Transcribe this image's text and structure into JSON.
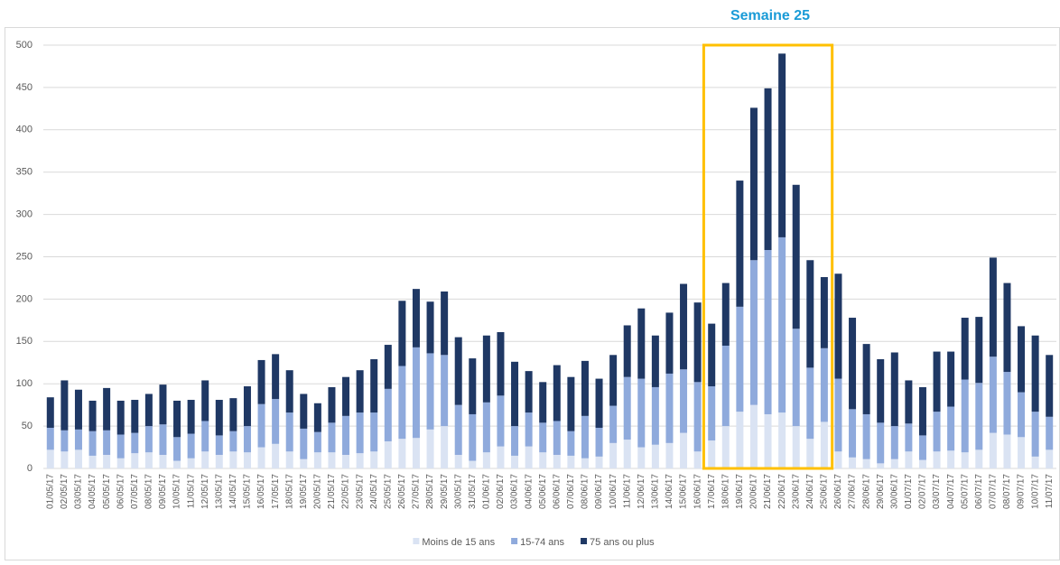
{
  "chart_data": {
    "type": "stacked_bar",
    "annotation": "Semaine 25",
    "categories": [
      "01/05/17",
      "02/05/17",
      "03/05/17",
      "04/05/17",
      "05/05/17",
      "06/05/17",
      "07/05/17",
      "08/05/17",
      "09/05/17",
      "10/05/17",
      "11/05/17",
      "12/05/17",
      "13/05/17",
      "14/05/17",
      "15/05/17",
      "16/05/17",
      "17/05/17",
      "18/05/17",
      "19/05/17",
      "20/05/17",
      "21/05/17",
      "22/05/17",
      "23/05/17",
      "24/05/17",
      "25/05/17",
      "26/05/17",
      "27/05/17",
      "28/05/17",
      "29/05/17",
      "30/05/17",
      "31/05/17",
      "01/06/17",
      "02/06/17",
      "03/06/17",
      "04/06/17",
      "05/06/17",
      "06/06/17",
      "07/06/17",
      "08/06/17",
      "09/06/17",
      "10/06/17",
      "11/06/17",
      "12/06/17",
      "13/06/17",
      "14/06/17",
      "15/06/17",
      "16/06/17",
      "17/06/17",
      "18/06/17",
      "19/06/17",
      "20/06/17",
      "21/06/17",
      "22/06/17",
      "23/06/17",
      "24/06/17",
      "25/06/17",
      "26/06/17",
      "27/06/17",
      "28/06/17",
      "29/06/17",
      "30/06/17",
      "01/07/17",
      "02/07/17",
      "03/07/17",
      "04/07/17",
      "05/07/17",
      "06/07/17",
      "07/07/17",
      "08/07/17",
      "09/07/17",
      "10/07/17",
      "11/07/17"
    ],
    "series": [
      {
        "name": "Moins de 15 ans",
        "color": "#dae3f3",
        "values": [
          22,
          20,
          22,
          15,
          16,
          12,
          18,
          19,
          16,
          9,
          12,
          20,
          16,
          20,
          19,
          25,
          29,
          20,
          11,
          19,
          19,
          16,
          18,
          20,
          32,
          35,
          36,
          46,
          50,
          16,
          9,
          19,
          26,
          15,
          26,
          19,
          16,
          15,
          12,
          14,
          30,
          34,
          25,
          28,
          30,
          42,
          20,
          33,
          50,
          67,
          75,
          64,
          66,
          50,
          35,
          55,
          20,
          13,
          11,
          6,
          11,
          20,
          10,
          20,
          21,
          19,
          22,
          42,
          40,
          37,
          14,
          22
        ]
      },
      {
        "name": "15-74 ans",
        "color": "#8faadc",
        "values": [
          26,
          25,
          24,
          29,
          29,
          28,
          24,
          31,
          36,
          28,
          29,
          36,
          23,
          24,
          31,
          51,
          53,
          46,
          36,
          24,
          35,
          46,
          48,
          46,
          62,
          86,
          107,
          90,
          84,
          59,
          55,
          59,
          60,
          35,
          40,
          35,
          40,
          29,
          50,
          34,
          44,
          74,
          81,
          68,
          82,
          75,
          82,
          64,
          95,
          124,
          171,
          194,
          207,
          115,
          84,
          87,
          86,
          57,
          53,
          48,
          39,
          33,
          29,
          47,
          52,
          86,
          79,
          90,
          74,
          53,
          53,
          39
        ]
      },
      {
        "name": "75 ans ou plus",
        "color": "#1f3864",
        "values": [
          36,
          59,
          47,
          36,
          50,
          40,
          39,
          38,
          47,
          43,
          40,
          48,
          42,
          39,
          47,
          52,
          53,
          50,
          41,
          34,
          42,
          46,
          50,
          63,
          52,
          77,
          69,
          61,
          75,
          80,
          66,
          79,
          75,
          76,
          49,
          48,
          66,
          64,
          65,
          58,
          60,
          61,
          83,
          61,
          72,
          101,
          94,
          74,
          74,
          149,
          180,
          191,
          217,
          170,
          127,
          84,
          124,
          108,
          83,
          75,
          87,
          51,
          57,
          71,
          65,
          73,
          78,
          117,
          105,
          78,
          90,
          73
        ]
      }
    ],
    "ylim": [
      0,
      500
    ],
    "yticks": [
      0,
      50,
      100,
      150,
      200,
      250,
      300,
      350,
      400,
      450,
      500
    ],
    "grid": true
  }
}
